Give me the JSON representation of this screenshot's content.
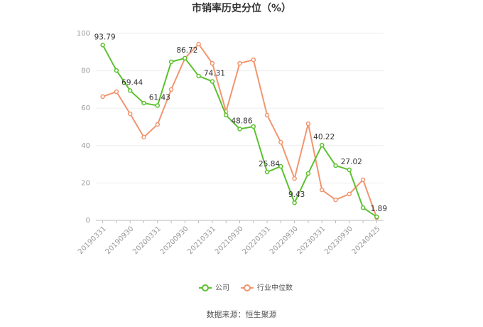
{
  "chart_data": {
    "type": "line",
    "title": "市销率历史分位（%）",
    "categories": [
      "20190331",
      null,
      "20190930",
      null,
      "20200331",
      null,
      "20200930",
      null,
      "20210331",
      null,
      "20210930",
      null,
      "20220331",
      null,
      "20220930",
      null,
      "20230331",
      null,
      "20230930",
      null,
      "20240425"
    ],
    "series": [
      {
        "name": "公司",
        "color": "#5cc130",
        "values": [
          93.79,
          80.2,
          69.44,
          62.7,
          61.43,
          84.8,
          86.72,
          77.2,
          74.31,
          56.3,
          48.86,
          50.2,
          25.84,
          28.9,
          9.43,
          25.1,
          40.22,
          29.3,
          27.02,
          6.8,
          1.89
        ]
      },
      {
        "name": "行业中位数",
        "color": "#f29570",
        "values": [
          66.2,
          68.8,
          57.0,
          44.5,
          51.3,
          70.0,
          86.7,
          94.3,
          84.0,
          58.2,
          84.0,
          85.9,
          56.3,
          41.8,
          22.4,
          51.7,
          16.3,
          11.0,
          14.1,
          21.7,
          1.5
        ]
      }
    ],
    "ylim": [
      0,
      100
    ],
    "yticks": [
      0,
      20,
      40,
      60,
      80,
      100
    ],
    "grid": true,
    "legend": "bottom",
    "source": "数据来源：恒生聚源"
  }
}
